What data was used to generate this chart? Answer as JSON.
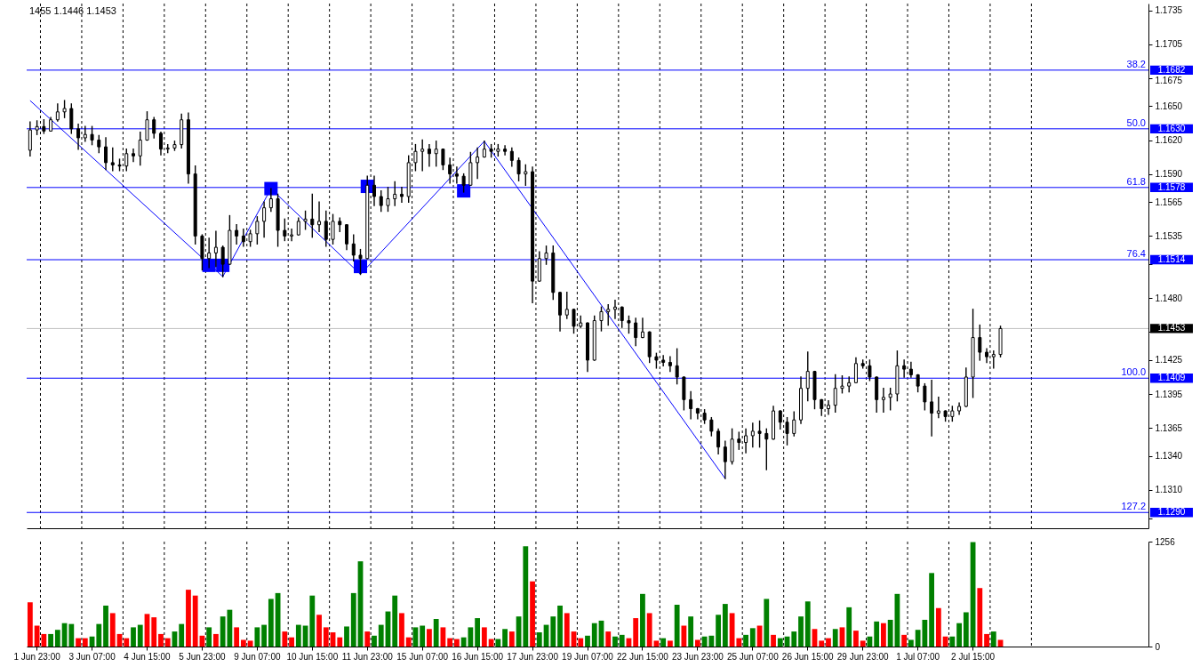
{
  "chart_data": [
    {
      "type": "candlestick",
      "categories": [
        null,
        null,
        null,
        null,
        null,
        null,
        null,
        null,
        null,
        null,
        null,
        null,
        null,
        null,
        null,
        null,
        null,
        null,
        null,
        null,
        null,
        null,
        null,
        null,
        null,
        null,
        null,
        null,
        null,
        null,
        null,
        null,
        null,
        null,
        null,
        null,
        null,
        null,
        null,
        null,
        null,
        null,
        null,
        null,
        null,
        null,
        null,
        null,
        null,
        null,
        null,
        null,
        null,
        null,
        null,
        null,
        null,
        null,
        null,
        null,
        null,
        null,
        null,
        null,
        null,
        null,
        null,
        null,
        null,
        null,
        null,
        null,
        null,
        null,
        null,
        null,
        null,
        null,
        null,
        null,
        null,
        null,
        null,
        null,
        null,
        null,
        null,
        null,
        null,
        null,
        null,
        null,
        null,
        null,
        null,
        null,
        null,
        null,
        null,
        null,
        null,
        null,
        null,
        null,
        null,
        null,
        null,
        null,
        null,
        null,
        null,
        null,
        null,
        null,
        null,
        null,
        null,
        null,
        null,
        null,
        null,
        null,
        null,
        null,
        null,
        null,
        null,
        null,
        null,
        null,
        null,
        null,
        null,
        null,
        null,
        null,
        null,
        null,
        null,
        null,
        null,
        null,
        null,
        null,
        null,
        null,
        null,
        null,
        null,
        null,
        null,
        null,
        null,
        null,
        null,
        null,
        null,
        null,
        null,
        null,
        null,
        null,
        null
      ],
      "ohlc": [
        [
          1.1611,
          1.1636,
          1.1606,
          1.1629
        ],
        [
          1.1629,
          1.1637,
          1.1625,
          1.1632
        ],
        [
          1.1632,
          1.1638,
          1.1626,
          1.1628
        ],
        [
          1.1628,
          1.164,
          1.1628,
          1.1638
        ],
        [
          1.1638,
          1.1652,
          1.1637,
          1.1645
        ],
        [
          1.1645,
          1.1655,
          1.164,
          1.1648
        ],
        [
          1.1648,
          1.1652,
          1.1626,
          1.163
        ],
        [
          1.163,
          1.1634,
          1.1612,
          1.1622
        ],
        [
          1.1622,
          1.1632,
          1.1619,
          1.1625
        ],
        [
          1.1625,
          1.1632,
          1.1616,
          1.162
        ],
        [
          1.162,
          1.1624,
          1.1609,
          1.1614
        ],
        [
          1.1614,
          1.1622,
          1.1594,
          1.16
        ],
        [
          1.16,
          1.1613,
          1.1593,
          1.1598
        ],
        [
          1.1598,
          1.1603,
          1.1593,
          1.1597
        ],
        [
          1.1597,
          1.1612,
          1.1593,
          1.1608
        ],
        [
          1.1608,
          1.1612,
          1.1601,
          1.1606
        ],
        [
          1.1606,
          1.1627,
          1.1598,
          1.162
        ],
        [
          1.162,
          1.1645,
          1.162,
          1.1638
        ],
        [
          1.1638,
          1.164,
          1.1622,
          1.1626
        ],
        [
          1.1626,
          1.1627,
          1.1607,
          1.1612
        ],
        [
          1.1612,
          1.1616,
          1.1609,
          1.1613
        ],
        [
          1.1613,
          1.1619,
          1.1611,
          1.1616
        ],
        [
          1.1616,
          1.1643,
          1.1613,
          1.1638
        ],
        [
          1.1638,
          1.1644,
          1.1582,
          1.159
        ],
        [
          1.159,
          1.1597,
          1.1528,
          1.1535
        ],
        [
          1.1535,
          1.1536,
          1.1505,
          1.1515
        ],
        [
          1.1515,
          1.1533,
          1.1507,
          1.152
        ],
        [
          1.152,
          1.1539,
          1.1508,
          1.1525
        ],
        [
          1.1525,
          1.1526,
          1.1499,
          1.151
        ],
        [
          1.151,
          1.1553,
          1.151,
          1.154
        ],
        [
          1.154,
          1.1545,
          1.1528,
          1.1535
        ],
        [
          1.1535,
          1.1541,
          1.1526,
          1.153
        ],
        [
          1.153,
          1.154,
          1.1526,
          1.1537
        ],
        [
          1.1537,
          1.1552,
          1.1528,
          1.1548
        ],
        [
          1.1548,
          1.1565,
          1.1534,
          1.156
        ],
        [
          1.156,
          1.1577,
          1.1557,
          1.1568
        ],
        [
          1.1568,
          1.1572,
          1.1526,
          1.154
        ],
        [
          1.154,
          1.155,
          1.1531,
          1.1535
        ],
        [
          1.1535,
          1.1541,
          1.1531,
          1.1536
        ],
        [
          1.1536,
          1.1551,
          1.1536,
          1.1548
        ],
        [
          1.1548,
          1.1557,
          1.1541,
          1.155
        ],
        [
          1.155,
          1.1572,
          1.1534,
          1.1545
        ],
        [
          1.1545,
          1.1565,
          1.1539,
          1.1548
        ],
        [
          1.1548,
          1.1557,
          1.1526,
          1.1532
        ],
        [
          1.1532,
          1.1554,
          1.1528,
          1.1548
        ],
        [
          1.1548,
          1.1551,
          1.1539,
          1.1545
        ],
        [
          1.1545,
          1.1545,
          1.1523,
          1.1528
        ],
        [
          1.1528,
          1.1536,
          1.1513,
          1.1518
        ],
        [
          1.1518,
          1.1523,
          1.1501,
          1.1515
        ],
        [
          1.1515,
          1.1588,
          1.1515,
          1.158
        ],
        [
          1.158,
          1.1588,
          1.1562,
          1.157
        ],
        [
          1.157,
          1.1575,
          1.1557,
          1.1562
        ],
        [
          1.1562,
          1.1578,
          1.1557,
          1.1568
        ],
        [
          1.1568,
          1.1583,
          1.1562,
          1.1572
        ],
        [
          1.1572,
          1.1578,
          1.1565,
          1.157
        ],
        [
          1.157,
          1.1606,
          1.1565,
          1.16
        ],
        [
          1.16,
          1.1616,
          1.1593,
          1.161
        ],
        [
          1.161,
          1.162,
          1.1593,
          1.1612
        ],
        [
          1.1612,
          1.1616,
          1.1597,
          1.1608
        ],
        [
          1.1608,
          1.1619,
          1.1597,
          1.1612
        ],
        [
          1.1612,
          1.1612,
          1.1594,
          1.1598
        ],
        [
          1.1598,
          1.1604,
          1.1582,
          1.159
        ],
        [
          1.159,
          1.1596,
          1.1582,
          1.1588
        ],
        [
          1.1588,
          1.159,
          1.1574,
          1.158
        ],
        [
          1.158,
          1.1609,
          1.158,
          1.16
        ],
        [
          1.16,
          1.1613,
          1.1586,
          1.1605
        ],
        [
          1.1605,
          1.1619,
          1.1605,
          1.1612
        ],
        [
          1.1612,
          1.1616,
          1.1605,
          1.161
        ],
        [
          1.161,
          1.1616,
          1.1606,
          1.1612
        ],
        [
          1.1612,
          1.1615,
          1.1607,
          1.161
        ],
        [
          1.161,
          1.1613,
          1.1597,
          1.1602
        ],
        [
          1.1602,
          1.1604,
          1.1584,
          1.159
        ],
        [
          1.159,
          1.1598,
          1.158,
          1.1592
        ],
        [
          1.1592,
          1.1596,
          1.1476,
          1.1495
        ],
        [
          1.1495,
          1.1521,
          1.1495,
          1.1515
        ],
        [
          1.1515,
          1.1526,
          1.151,
          1.152
        ],
        [
          1.152,
          1.1526,
          1.1479,
          1.1485
        ],
        [
          1.1485,
          1.1485,
          1.1451,
          1.1465
        ],
        [
          1.1465,
          1.1485,
          1.1462,
          1.147
        ],
        [
          1.147,
          1.147,
          1.1449,
          1.1455
        ],
        [
          1.1455,
          1.1464,
          1.1454,
          1.1458
        ],
        [
          1.1458,
          1.1458,
          1.1415,
          1.1425
        ],
        [
          1.1425,
          1.1464,
          1.1425,
          1.146
        ],
        [
          1.146,
          1.1472,
          1.1451,
          1.1468
        ],
        [
          1.1468,
          1.1474,
          1.1456,
          1.147
        ],
        [
          1.147,
          1.1478,
          1.1462,
          1.1472
        ],
        [
          1.1472,
          1.1472,
          1.1454,
          1.146
        ],
        [
          1.146,
          1.1464,
          1.1449,
          1.1458
        ],
        [
          1.1458,
          1.1462,
          1.1438,
          1.1445
        ],
        [
          1.1445,
          1.1462,
          1.1445,
          1.145
        ],
        [
          1.145,
          1.145,
          1.1423,
          1.1428
        ],
        [
          1.1428,
          1.1431,
          1.1418,
          1.1425
        ],
        [
          1.1425,
          1.1429,
          1.142,
          1.1423
        ],
        [
          1.1423,
          1.1428,
          1.1415,
          1.142
        ],
        [
          1.142,
          1.1435,
          1.1404,
          1.141
        ],
        [
          1.141,
          1.141,
          1.1381,
          1.139
        ],
        [
          1.139,
          1.1397,
          1.1373,
          1.1382
        ],
        [
          1.1382,
          1.1382,
          1.1373,
          1.1378
        ],
        [
          1.1378,
          1.1381,
          1.1369,
          1.1372
        ],
        [
          1.1372,
          1.1374,
          1.1358,
          1.1362
        ],
        [
          1.1362,
          1.1364,
          1.1342,
          1.1348
        ],
        [
          1.1348,
          1.1353,
          1.132,
          1.1335
        ],
        [
          1.1335,
          1.1364,
          1.1333,
          1.1355
        ],
        [
          1.1355,
          1.1361,
          1.1346,
          1.1352
        ],
        [
          1.1352,
          1.1364,
          1.1343,
          1.1358
        ],
        [
          1.1358,
          1.1369,
          1.1348,
          1.1362
        ],
        [
          1.1362,
          1.1371,
          1.1348,
          1.136
        ],
        [
          1.136,
          1.1364,
          1.1328,
          1.1355
        ],
        [
          1.1355,
          1.1384,
          1.1355,
          1.138
        ],
        [
          1.138,
          1.138,
          1.1364,
          1.137
        ],
        [
          1.137,
          1.1374,
          1.135,
          1.136
        ],
        [
          1.136,
          1.1379,
          1.1358,
          1.1372
        ],
        [
          1.1372,
          1.141,
          1.1369,
          1.14
        ],
        [
          1.14,
          1.1432,
          1.1389,
          1.1415
        ],
        [
          1.1415,
          1.1415,
          1.1382,
          1.139
        ],
        [
          1.139,
          1.139,
          1.1376,
          1.1382
        ],
        [
          1.1382,
          1.1389,
          1.1377,
          1.1385
        ],
        [
          1.1385,
          1.1412,
          1.1379,
          1.14
        ],
        [
          1.14,
          1.1411,
          1.1396,
          1.1402
        ],
        [
          1.1402,
          1.141,
          1.1397,
          1.1405
        ],
        [
          1.1405,
          1.1427,
          1.1405,
          1.1422
        ],
        [
          1.1422,
          1.1425,
          1.1418,
          1.142
        ],
        [
          1.142,
          1.1425,
          1.1407,
          1.141
        ],
        [
          1.141,
          1.141,
          1.1379,
          1.139
        ],
        [
          1.139,
          1.14,
          1.1379,
          1.1392
        ],
        [
          1.1392,
          1.14,
          1.1381,
          1.1395
        ],
        [
          1.1395,
          1.1433,
          1.1389,
          1.142
        ],
        [
          1.142,
          1.1425,
          1.141,
          1.1417
        ],
        [
          1.1417,
          1.1423,
          1.141,
          1.1412
        ],
        [
          1.1412,
          1.1412,
          1.1397,
          1.1402
        ],
        [
          1.1402,
          1.1404,
          1.1381,
          1.1388
        ],
        [
          1.1388,
          1.1407,
          1.1358,
          1.1378
        ],
        [
          1.1378,
          1.1392,
          1.1374,
          1.138
        ],
        [
          1.138,
          1.138,
          1.1371,
          1.1375
        ],
        [
          1.1375,
          1.1384,
          1.1371,
          1.138
        ],
        [
          1.138,
          1.1387,
          1.1377,
          1.1384
        ],
        [
          1.1384,
          1.1418,
          1.1384,
          1.141
        ],
        [
          1.141,
          1.147,
          1.1392,
          1.1445
        ],
        [
          1.1445,
          1.1456,
          1.1425,
          1.1432
        ],
        [
          1.1432,
          1.1435,
          1.1423,
          1.1428
        ],
        [
          1.1428,
          1.1433,
          1.1418,
          1.143
        ],
        [
          1.143,
          1.1455,
          1.1428,
          1.1453
        ],
        null,
        null,
        null,
        null,
        null,
        null,
        null,
        null,
        null,
        null,
        null,
        null,
        null,
        null,
        null,
        null,
        null,
        null,
        null,
        null,
        null
      ],
      "color": "#000000",
      "series": [
        {
          "type": "line",
          "color": "#0000ff",
          "values": [
            1.1655,
            null,
            null,
            null,
            null,
            null,
            null,
            null,
            null,
            null,
            null,
            null,
            null,
            null,
            null,
            null,
            null,
            null,
            null,
            null,
            null,
            null,
            null,
            null,
            null,
            null,
            null,
            null,
            1.1499,
            null,
            null,
            null,
            null,
            null,
            null,
            1.1577,
            null,
            null,
            null,
            null,
            null,
            null,
            null,
            null,
            null,
            null,
            null,
            null,
            1.1501,
            null,
            null,
            null,
            null,
            null,
            null,
            null,
            null,
            null,
            null,
            null,
            null,
            null,
            null,
            null,
            null,
            null,
            1.1619,
            null,
            null,
            null,
            null,
            null,
            null,
            null,
            null,
            null,
            null,
            null,
            null,
            null,
            null,
            null,
            null,
            null,
            null,
            null,
            null,
            null,
            null,
            null,
            null,
            null,
            null,
            null,
            null,
            null,
            null,
            null,
            null,
            null,
            null,
            1.132,
            null,
            null,
            null,
            null,
            null,
            null,
            null,
            null,
            null,
            null,
            null,
            null,
            null,
            null,
            null,
            null,
            null,
            null,
            null,
            null,
            null,
            null,
            null,
            null,
            null,
            null,
            null,
            null,
            null,
            null,
            null,
            null,
            null,
            null,
            null,
            null,
            null,
            null,
            null,
            null,
            null,
            null,
            null,
            null,
            null,
            null,
            null,
            null,
            null,
            null,
            null,
            null,
            null,
            null,
            null,
            null,
            null,
            null,
            null,
            null,
            null
          ]
        },
        {
          "type": "scatter",
          "color": "#0000ff",
          "marker": "square",
          "values": [
            null,
            null,
            null,
            null,
            null,
            null,
            null,
            null,
            null,
            null,
            null,
            null,
            null,
            null,
            null,
            null,
            null,
            null,
            null,
            null,
            null,
            null,
            null,
            null,
            null,
            null,
            1.1509,
            null,
            1.1509,
            null,
            null,
            null,
            null,
            null,
            null,
            1.1577,
            null,
            null,
            null,
            null,
            null,
            null,
            null,
            null,
            null,
            null,
            null,
            null,
            1.1508,
            1.1579,
            null,
            null,
            null,
            null,
            null,
            null,
            null,
            null,
            null,
            null,
            null,
            null,
            null,
            1.1575,
            null,
            null,
            null,
            null,
            null,
            null,
            null,
            null,
            null,
            null,
            null,
            null,
            null,
            null,
            null,
            null,
            null,
            null,
            null,
            null,
            null,
            null,
            null,
            null,
            null,
            null,
            null,
            null,
            null,
            null,
            null,
            null,
            null,
            null,
            null,
            null,
            null,
            null,
            null,
            null,
            null,
            null,
            null,
            null,
            null,
            null,
            null,
            null,
            null,
            null,
            null,
            null,
            null,
            null,
            null,
            null,
            null,
            null,
            null,
            null,
            null,
            null,
            null,
            null,
            null,
            null,
            null,
            null,
            null,
            null,
            null,
            null,
            null,
            null,
            null,
            null,
            null,
            null,
            null,
            null,
            null,
            null,
            null,
            null,
            null,
            null,
            null,
            null,
            null,
            null,
            null,
            null,
            null,
            null,
            null,
            null,
            null,
            null,
            null
          ]
        }
      ],
      "ylim": [
        1.1276,
        1.1741
      ],
      "yticks": [
        {
          "value": 1.1285,
          "label": null
        },
        {
          "value": 1.131,
          "label": "1.1310"
        },
        {
          "value": 1.134,
          "label": "1.1340"
        },
        1.1365,
        1.1395,
        1.1425,
        {
          "value": 1.145,
          "label": null
        },
        {
          "value": 1.148,
          "label": "1.1480"
        },
        {
          "value": 1.151,
          "label": null
        },
        1.1535,
        1.1565,
        {
          "value": 1.159,
          "label": "1.1590"
        },
        {
          "value": 1.162,
          "label": "1.1620"
        },
        {
          "value": 1.165,
          "label": "1.1650"
        },
        1.1675,
        1.1705,
        1.1735
      ],
      "ref_lines": [
        {
          "axis": "y",
          "value": 1.1682,
          "label": "1.1682",
          "color": "#0000ff"
        },
        {
          "axis": "y",
          "value": 1.163,
          "label": "1.1630",
          "color": "#0000ff"
        },
        {
          "axis": "y",
          "value": 1.1578,
          "label": "1.1578",
          "color": "#0000ff"
        },
        {
          "axis": "y",
          "value": 1.1514,
          "label": "1.1514",
          "color": "#0000ff"
        },
        {
          "axis": "y",
          "value": 1.1409,
          "label": "1.1409",
          "color": "#0000ff"
        },
        {
          "axis": "y",
          "value": 1.129,
          "label": "1.1290",
          "color": "#0000ff"
        },
        {
          "axis": "y",
          "value": 1.1453,
          "label": "1.1453",
          "color": "#c0c0c0"
        }
      ],
      "annotations": [
        "1455 1.1446 1.1453",
        {
          "text": "38.2",
          "y": 1.1682
        },
        {
          "text": "50.0",
          "y": 1.163
        },
        {
          "text": "61.8",
          "y": 1.1578
        },
        {
          "text": "76.4",
          "y": 1.1514
        },
        {
          "text": "100.0",
          "y": 1.1409
        },
        {
          "text": "127.2",
          "y": 1.129
        }
      ],
      "grid": "x"
    },
    {
      "type": "bar",
      "categories": [
        null,
        "1 Jun 23:00",
        null,
        null,
        null,
        null,
        null,
        null,
        null,
        "3 Jun 07:00",
        null,
        null,
        null,
        null,
        null,
        null,
        null,
        "4 Jun 15:00",
        null,
        null,
        null,
        null,
        null,
        null,
        null,
        "5 Jun 23:00",
        null,
        null,
        null,
        null,
        null,
        null,
        null,
        "9 Jun 07:00",
        null,
        null,
        null,
        null,
        null,
        null,
        null,
        "10 Jun 15:00",
        null,
        null,
        null,
        null,
        null,
        null,
        null,
        "11 Jun 23:00",
        null,
        null,
        null,
        null,
        null,
        null,
        null,
        "15 Jun 07:00",
        null,
        null,
        null,
        null,
        null,
        null,
        null,
        "16 Jun 15:00",
        null,
        null,
        null,
        null,
        null,
        null,
        null,
        "17 Jun 23:00",
        null,
        null,
        null,
        null,
        null,
        null,
        null,
        "19 Jun 07:00",
        null,
        null,
        null,
        null,
        null,
        null,
        null,
        "22 Jun 15:00",
        null,
        null,
        null,
        null,
        null,
        null,
        null,
        "23 Jun 23:00",
        null,
        null,
        null,
        null,
        null,
        null,
        null,
        "25 Jun 07:00",
        null,
        null,
        null,
        null,
        null,
        null,
        null,
        "26 Jun 15:00",
        null,
        null,
        null,
        null,
        null,
        null,
        null,
        "29 Jun 23:00",
        null,
        null,
        null,
        null,
        null,
        null,
        null,
        "1 Jul 07:00",
        null,
        null,
        null,
        null,
        null,
        null,
        null,
        "2 Jul 15:00",
        null,
        null,
        null,
        null,
        null,
        null,
        null,
        null,
        null,
        null,
        null,
        null,
        null,
        null,
        null,
        null,
        null,
        null,
        null,
        null,
        null,
        null,
        null,
        null,
        null
      ],
      "values": [
        530,
        250,
        150,
        150,
        200,
        280,
        270,
        100,
        100,
        120,
        270,
        490,
        400,
        150,
        100,
        230,
        260,
        390,
        350,
        150,
        100,
        180,
        270,
        680,
        610,
        130,
        230,
        150,
        360,
        440,
        230,
        80,
        70,
        230,
        260,
        570,
        640,
        180,
        110,
        260,
        250,
        610,
        380,
        230,
        170,
        110,
        240,
        640,
        1020,
        180,
        130,
        260,
        420,
        610,
        400,
        110,
        230,
        250,
        210,
        330,
        230,
        100,
        90,
        110,
        230,
        340,
        230,
        90,
        90,
        210,
        180,
        360,
        1200,
        780,
        170,
        260,
        360,
        490,
        400,
        180,
        100,
        130,
        280,
        310,
        180,
        120,
        140,
        100,
        340,
        630,
        400,
        70,
        100,
        70,
        500,
        250,
        360,
        80,
        120,
        130,
        380,
        510,
        400,
        100,
        140,
        220,
        250,
        570,
        140,
        100,
        120,
        180,
        360,
        540,
        210,
        70,
        100,
        210,
        230,
        470,
        190,
        70,
        120,
        300,
        280,
        320,
        630,
        140,
        80,
        200,
        320,
        880,
        460,
        120,
        120,
        280,
        410,
        1250,
        700,
        150,
        180,
        80,
        null,
        null,
        null,
        null,
        null,
        null,
        null,
        null,
        null,
        null,
        null,
        null,
        null,
        null,
        null,
        null,
        null,
        null,
        null,
        null,
        null
      ],
      "colors": [
        "#ff0000",
        "#ff0000",
        "#ff0000",
        "#008000",
        "#008000",
        "#008000",
        "#008000",
        "#ff0000",
        "#ff0000",
        "#008000",
        "#008000",
        "#008000",
        "#ff0000",
        "#ff0000",
        "#ff0000",
        "#008000",
        "#008000",
        "#ff0000",
        "#ff0000",
        "#ff0000",
        "#ff0000",
        "#008000",
        "#008000",
        "#ff0000",
        "#ff0000",
        "#ff0000",
        "#008000",
        "#ff0000",
        "#008000",
        "#008000",
        "#ff0000",
        "#ff0000",
        "#ff0000",
        "#008000",
        "#008000",
        "#008000",
        "#008000",
        "#ff0000",
        "#ff0000",
        "#008000",
        "#008000",
        "#008000",
        "#ff0000",
        "#ff0000",
        "#ff0000",
        "#ff0000",
        "#008000",
        "#008000",
        "#008000",
        "#ff0000",
        "#008000",
        "#008000",
        "#008000",
        "#008000",
        "#ff0000",
        "#ff0000",
        "#008000",
        "#008000",
        "#ff0000",
        "#008000",
        "#ff0000",
        "#ff0000",
        "#ff0000",
        "#008000",
        "#008000",
        "#008000",
        "#ff0000",
        "#ff0000",
        "#008000",
        "#008000",
        "#ff0000",
        "#008000",
        "#008000",
        "#ff0000",
        "#008000",
        "#008000",
        "#008000",
        "#008000",
        "#ff0000",
        "#ff0000",
        "#ff0000",
        "#008000",
        "#008000",
        "#008000",
        "#ff0000",
        "#008000",
        "#008000",
        "#ff0000",
        "#ff0000",
        "#008000",
        "#ff0000",
        "#ff0000",
        "#008000",
        "#ff0000",
        "#008000",
        "#ff0000",
        "#008000",
        "#ff0000",
        "#008000",
        "#008000",
        "#008000",
        "#008000",
        "#ff0000",
        "#ff0000",
        "#008000",
        "#008000",
        "#ff0000",
        "#008000",
        "#ff0000",
        "#008000",
        "#008000",
        "#008000",
        "#008000",
        "#008000",
        "#ff0000",
        "#ff0000",
        "#ff0000",
        "#008000",
        "#ff0000",
        "#008000",
        "#ff0000",
        "#ff0000",
        "#008000",
        "#008000",
        "#ff0000",
        "#008000",
        "#008000",
        "#ff0000",
        "#008000",
        "#008000",
        "#008000",
        "#008000",
        "#ff0000",
        "#ff0000",
        "#008000",
        "#008000",
        "#008000",
        "#008000",
        "#ff0000",
        "#ff0000",
        "#008000",
        "#ff0000",
        null,
        null,
        null,
        null,
        null,
        null,
        null,
        null,
        null,
        null,
        null,
        null,
        null,
        null,
        null,
        null,
        null,
        null,
        null,
        null,
        null
      ],
      "ylim": [
        0,
        1256
      ],
      "yticks": [
        0,
        1256
      ],
      "grid": "x"
    }
  ]
}
